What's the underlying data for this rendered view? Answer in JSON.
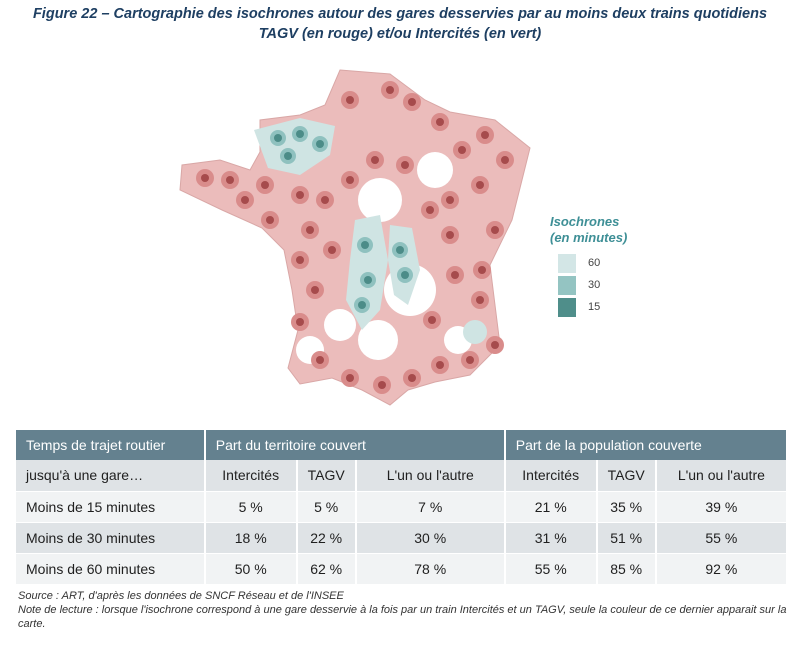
{
  "figure": {
    "title_line1": "Figure 22 – Cartographie des isochrones autour des gares desservies par au moins deux trains quotidiens",
    "title_line2": "TAGV (en rouge) et/ou Intercités (en vert)"
  },
  "legend": {
    "title_line1": "Isochrones",
    "title_line2": "(en minutes)",
    "items": [
      {
        "label": "60",
        "color": "#d3e6e6"
      },
      {
        "label": "30",
        "color": "#94c4c2"
      },
      {
        "label": "15",
        "color": "#4f8e8a"
      }
    ]
  },
  "colors": {
    "tagv_60": "#ebbcbb",
    "tagv_30": "#d98c8b",
    "tagv_15": "#a64b4c",
    "ic_60": "#cfe4e3",
    "ic_30": "#8fc1bf",
    "ic_15": "#4c8c88",
    "table_header": "#64818f"
  },
  "table": {
    "headers": [
      "Temps de trajet routier",
      "Part du territoire couvert",
      "Part de la population couverte"
    ],
    "subheaders": [
      "jusqu'à une gare…",
      "Intercités",
      "TAGV",
      "L'un ou l'autre",
      "Intercités",
      "TAGV",
      "L'un ou l'autre"
    ],
    "rows": [
      {
        "label": "Moins de 15 minutes",
        "territory": [
          "5 %",
          "5 %",
          "7 %"
        ],
        "population": [
          "21 %",
          "35 %",
          "39 %"
        ]
      },
      {
        "label": "Moins de 30 minutes",
        "territory": [
          "18 %",
          "22 %",
          "30 %"
        ],
        "population": [
          "31 %",
          "51 %",
          "55 %"
        ]
      },
      {
        "label": "Moins de 60 minutes",
        "territory": [
          "50 %",
          "62 %",
          "78 %"
        ],
        "population": [
          "55 %",
          "85 %",
          "92 %"
        ]
      }
    ]
  },
  "footnotes": {
    "source": "Source : ART, d'après les données de SNCF Réseau et de l'INSEE",
    "note": "Note de lecture : lorsque l'isochrone correspond à une gare desservie à la fois par un train Intercités et un TAGV, seule la couleur de ce dernier apparait sur la carte."
  }
}
